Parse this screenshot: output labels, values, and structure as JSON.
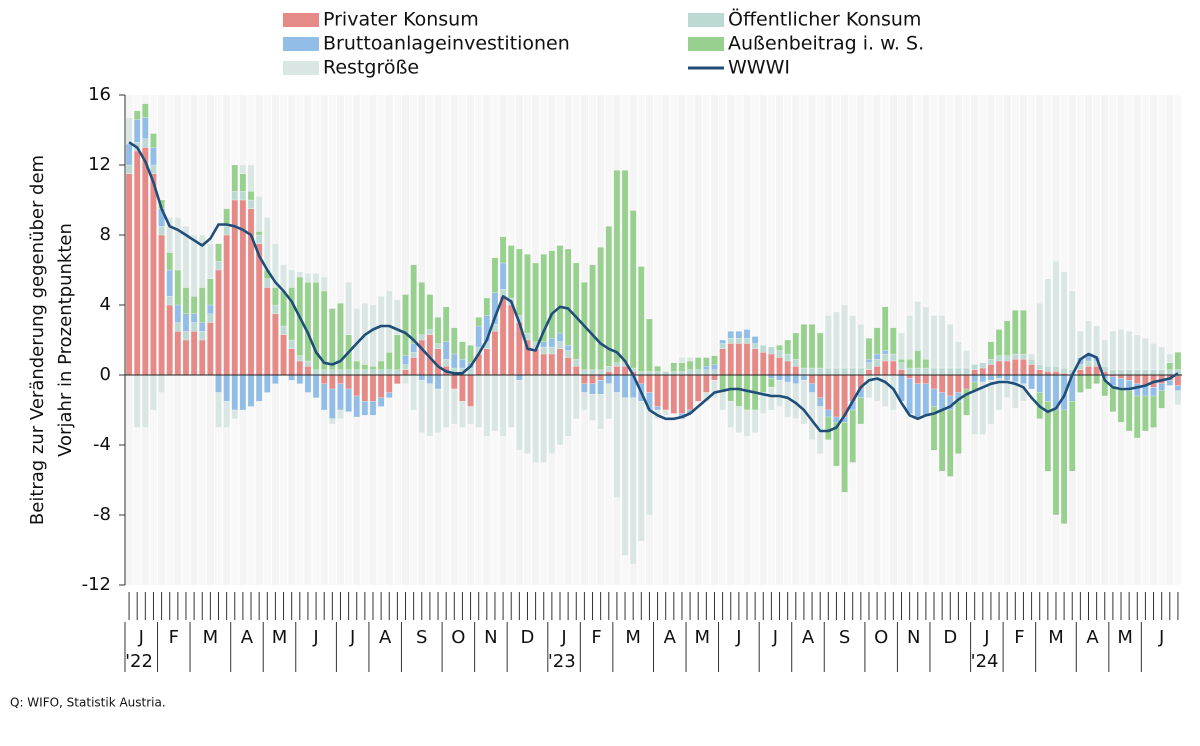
{
  "chart_data": {
    "type": "stacked-bar-line",
    "y_label_lines": [
      "Beitrag zur Veränderung gegenüber dem",
      "Vorjahr in Prozentpunkten"
    ],
    "ylim": [
      -12,
      16
    ],
    "yticks": [
      16,
      12,
      8,
      4,
      0,
      -4,
      -8,
      -12
    ],
    "months": [
      "J",
      "F",
      "M",
      "A",
      "M",
      "J",
      "J",
      "A",
      "S",
      "O",
      "N",
      "D",
      "J",
      "F",
      "M",
      "A",
      "M",
      "J",
      "J",
      "A",
      "S",
      "O",
      "N",
      "D",
      "J",
      "F",
      "M",
      "A",
      "M",
      "J"
    ],
    "years": [
      "'22",
      "'23",
      "'24"
    ],
    "source": "Q: WIFO, Statistik Austria.",
    "series": [
      {
        "name": "Privater Konsum",
        "color": "#e58a87",
        "values": [
          11.5,
          12.8,
          13,
          11.5,
          8,
          4,
          2.5,
          2,
          2.5,
          2,
          3,
          6,
          8,
          10,
          10,
          9.5,
          7.5,
          5,
          3.5,
          2.3,
          1.5,
          0.8,
          0.5,
          0,
          -0.5,
          -0.8,
          -0.5,
          -0.8,
          -1.2,
          -1.5,
          -1.5,
          -1.3,
          -1,
          -0.5,
          0.3,
          1,
          2,
          2.3,
          1.5,
          0.5,
          -0.8,
          -1.5,
          -1.8,
          1.2,
          1.5,
          2.5,
          4.5,
          4,
          3,
          2,
          1.5,
          1.2,
          1.2,
          1.5,
          1,
          0.5,
          -0.5,
          -0.5,
          -0.3,
          0.2,
          0.5,
          0.5,
          0.2,
          -0.5,
          -1,
          -1.8,
          -2,
          -2.2,
          -2.2,
          -2,
          -1.5,
          -1,
          -0.3,
          1.5,
          1.8,
          1.8,
          1.8,
          1.5,
          1.3,
          1.2,
          1,
          0.8,
          0.5,
          0,
          -0.5,
          -1.3,
          -2,
          -2.4,
          -2.4,
          -1.5,
          -0.8,
          0.3,
          0.5,
          0.8,
          0.8,
          0.3,
          -0.2,
          -0.5,
          -0.5,
          -0.8,
          -1,
          -1.2,
          -1,
          -0.8,
          0.3,
          0.4,
          0.6,
          0.8,
          0.8,
          0.9,
          0.9,
          0.6,
          0.3,
          0.2,
          0.2,
          0.1,
          0,
          0.3,
          0.5,
          0.5,
          0.2,
          -0.1,
          -0.2,
          -0.3,
          -0.5,
          -0.6,
          -0.7,
          -0.5,
          -0.3,
          -0.6
        ]
      },
      {
        "name": "Öffentlicher Konsum",
        "color": "#bcd9d3",
        "values": [
          0.5,
          0.5,
          0.5,
          0.5,
          0.5,
          0.5,
          0.5,
          0.5,
          0.5,
          0.5,
          0.5,
          0.5,
          0.5,
          0.5,
          0.5,
          0.5,
          0.5,
          0.5,
          0.5,
          0.5,
          0.5,
          0.3,
          0.3,
          0.3,
          0.3,
          0.3,
          0.3,
          0.3,
          0.3,
          0.3,
          0.3,
          0.3,
          0.3,
          0.3,
          0.3,
          0.3,
          0.3,
          0.3,
          0.3,
          0.4,
          0.4,
          0.4,
          0.4,
          0.4,
          0.4,
          0.4,
          0.4,
          0.4,
          0.4,
          0.4,
          0.4,
          0.4,
          0.4,
          0.4,
          0.4,
          0.4,
          0.3,
          0.3,
          0.3,
          0.3,
          0.2,
          0.2,
          0.2,
          0.2,
          0.2,
          0.2,
          0.2,
          0.2,
          0.2,
          0.3,
          0.3,
          0.3,
          0.3,
          0.3,
          0.3,
          0.3,
          0.3,
          0.3,
          0.4,
          0.4,
          0.4,
          0.4,
          0.4,
          0.4,
          0.4,
          0.4,
          0.4,
          0.4,
          0.4,
          0.4,
          0.4,
          0.4,
          0.4,
          0.4,
          0.4,
          0.4,
          0.4,
          0.4,
          0.4,
          0.4,
          0.4,
          0.4,
          0.4,
          0.4,
          0.3,
          0.3,
          0.3,
          0.3,
          0.3,
          0.3,
          0.3,
          0.3,
          0.3,
          0.3,
          0.3,
          0.3,
          0.3,
          0.3,
          0.3,
          0.3,
          0.3,
          0.3,
          0.3,
          0.3,
          0.3,
          0.3,
          0.3,
          0.3,
          0.3,
          0.3
        ]
      },
      {
        "name": "Bruttoanlageinvestitionen",
        "color": "#92bde6",
        "values": [
          1.2,
          1.3,
          1.2,
          1,
          1,
          1.5,
          1,
          1,
          0.5,
          0.5,
          0.5,
          -1,
          -1.5,
          -2,
          -2,
          -1.8,
          -1.5,
          -1,
          -0.5,
          0,
          -0.3,
          -0.5,
          -1,
          -1.3,
          -1.5,
          -1.7,
          -1.5,
          -1.3,
          -1.2,
          -0.8,
          -0.8,
          -0.5,
          -0.3,
          0,
          0.5,
          0.5,
          -0.3,
          -0.5,
          -0.8,
          1,
          0.8,
          0.5,
          0.3,
          1.2,
          1.5,
          1.8,
          1.5,
          0,
          -0.3,
          0,
          0,
          0.3,
          0.5,
          0.5,
          0.3,
          0,
          -0.5,
          -0.6,
          -0.8,
          -0.5,
          -1,
          -1.3,
          -1.3,
          -1,
          -1,
          -0.2,
          0,
          0,
          -0.3,
          -0.2,
          0,
          0.2,
          0.3,
          0.2,
          0.4,
          0.4,
          0.5,
          0.4,
          0,
          -0.2,
          -0.3,
          -0.4,
          -0.5,
          -0.3,
          -0.5,
          -0.5,
          -0.4,
          -0.3,
          -0.3,
          -0.5,
          -0.5,
          0.2,
          0.3,
          0.2,
          0,
          -1.5,
          -2,
          -2,
          -1.8,
          -1,
          -1,
          -0.8,
          -0.5,
          0,
          -0.4,
          -0.4,
          -0.3,
          -0.2,
          -0.3,
          -0.4,
          -0.5,
          -0.8,
          -1,
          -1.5,
          -2,
          -2,
          -1.5,
          0.4,
          0.3,
          0.2,
          -0.2,
          -0.5,
          -0.5,
          -0.6,
          -0.7,
          -0.6,
          -0.5,
          -0.4,
          -0.3,
          -0.3
        ]
      },
      {
        "name": "Außenbeitrag i. w. S.",
        "color": "#98d08f",
        "values": [
          0,
          0.5,
          0.8,
          0.8,
          0.5,
          1,
          2,
          1.5,
          1,
          2,
          1.5,
          1,
          1,
          1.5,
          1,
          0.5,
          0.2,
          0.5,
          1,
          2,
          3,
          4.5,
          4.5,
          5,
          4.5,
          3.5,
          3.8,
          2,
          0.5,
          0.3,
          0.2,
          0.5,
          1,
          2,
          3.5,
          4.5,
          3,
          2,
          1.5,
          2,
          1.5,
          1,
          1,
          0.5,
          1,
          2,
          1.5,
          3,
          3.8,
          4.5,
          4.5,
          5,
          5,
          5,
          5.5,
          5.5,
          5,
          6,
          7,
          8,
          11,
          11,
          9,
          6,
          3,
          0.3,
          0,
          0.5,
          0.5,
          0.5,
          0.7,
          0.5,
          0.5,
          -1,
          -1.5,
          -1.8,
          -2,
          -2,
          -1,
          -0.5,
          0.3,
          0.8,
          1.5,
          2.5,
          2.5,
          2,
          -1.3,
          -2.5,
          -4,
          -3,
          -1.5,
          1.2,
          1.5,
          2.5,
          1.5,
          0.2,
          0.5,
          1,
          0.5,
          -2.5,
          -3.5,
          -3.8,
          -3,
          -1.5,
          -0.5,
          0,
          1,
          1.5,
          2,
          2.5,
          2.5,
          0,
          -1.5,
          -4,
          -6,
          -6.5,
          -4,
          -1,
          -0.8,
          -0.5,
          -1,
          -1.5,
          -2,
          -2.3,
          -2.4,
          -2,
          -1.8,
          -1,
          0.4,
          1
        ]
      },
      {
        "name": "Restgröße",
        "color": "#d9e6e3",
        "values": [
          1.5,
          -3,
          -3,
          -2,
          -1,
          2,
          3,
          3.5,
          3.5,
          3,
          2,
          -2,
          -1.5,
          -0.5,
          0.5,
          1.5,
          2,
          3,
          2.5,
          1.5,
          1,
          0.3,
          0.5,
          0.5,
          0.8,
          -0.3,
          -0.5,
          3,
          3,
          3.5,
          3.5,
          3.7,
          3.5,
          2,
          -0.5,
          -2,
          -3,
          -3,
          -2.5,
          -3,
          -2,
          -1.5,
          -1,
          -3,
          -3.5,
          -3.2,
          -3.5,
          -3,
          -4,
          -4.5,
          -5,
          -5,
          -4.5,
          -4,
          -3.5,
          -2.5,
          -1,
          -1.5,
          -2,
          -2,
          -6,
          -9,
          -9.5,
          -8,
          -6,
          -0.5,
          -0.3,
          0,
          0.3,
          0.2,
          0,
          -0.5,
          -1,
          -1,
          -1.5,
          -1.5,
          -1.5,
          -1.3,
          -1.2,
          -1.3,
          -1.5,
          -2,
          -2,
          -2.5,
          -2.7,
          -2.7,
          3,
          3.2,
          3.6,
          3,
          2.5,
          -1.3,
          -1.5,
          -1.8,
          -2,
          1.5,
          2.5,
          2.8,
          3,
          3,
          3,
          2.5,
          1.5,
          1,
          -2.5,
          -3,
          -2.5,
          -1.8,
          -1,
          -1.5,
          -1,
          0.3,
          3.5,
          5,
          6,
          5.5,
          4.5,
          1.5,
          2,
          1.8,
          1.5,
          2.2,
          2.3,
          2.2,
          2,
          1.8,
          1.5,
          1.3,
          0.5,
          -0.8
        ]
      },
      {
        "name": "WWWI",
        "color": "#1f4e79",
        "type": "line",
        "values": [
          13.3,
          13,
          12.2,
          11,
          9.5,
          8.5,
          8.3,
          8,
          7.7,
          7.4,
          7.8,
          8.6,
          8.6,
          8.5,
          8.3,
          8,
          6.8,
          6,
          5.3,
          4.8,
          4.2,
          3.3,
          2.4,
          1.3,
          0.7,
          0.6,
          0.8,
          1.3,
          1.8,
          2.3,
          2.6,
          2.8,
          2.8,
          2.6,
          2.4,
          2,
          1.5,
          1,
          0.5,
          0.2,
          0.1,
          0.1,
          0.5,
          1.2,
          2,
          3.3,
          4.5,
          4.2,
          3,
          1.5,
          1.4,
          2.5,
          3.5,
          3.9,
          3.8,
          3.3,
          2.8,
          2.3,
          1.8,
          1.5,
          1.3,
          0.8,
          0,
          -1,
          -2,
          -2.3,
          -2.5,
          -2.5,
          -2.4,
          -2.2,
          -1.8,
          -1.4,
          -1,
          -0.9,
          -0.8,
          -0.8,
          -0.9,
          -1,
          -1.1,
          -1.2,
          -1.2,
          -1.3,
          -1.6,
          -2,
          -2.6,
          -3.2,
          -3.2,
          -3,
          -2.3,
          -1.5,
          -0.7,
          -0.3,
          -0.2,
          -0.4,
          -0.8,
          -1.6,
          -2.3,
          -2.5,
          -2.3,
          -2.2,
          -2,
          -1.8,
          -1.4,
          -1.1,
          -0.9,
          -0.7,
          -0.5,
          -0.4,
          -0.4,
          -0.5,
          -0.7,
          -1.3,
          -1.8,
          -2.1,
          -1.9,
          -1.2,
          0,
          0.9,
          1.2,
          1,
          -0.3,
          -0.7,
          -0.8,
          -0.8,
          -0.7,
          -0.6,
          -0.4,
          -0.3,
          -0.2,
          0.1
        ]
      }
    ]
  }
}
